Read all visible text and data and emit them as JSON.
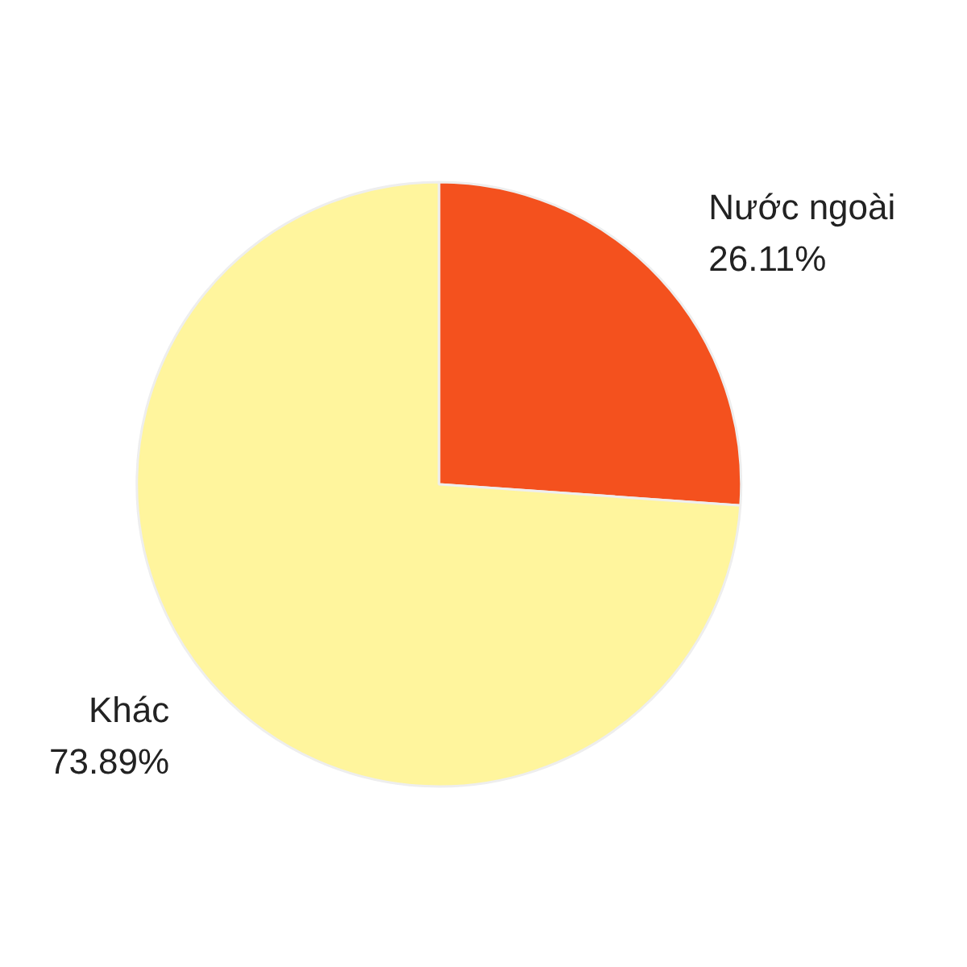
{
  "chart_data": {
    "type": "pie",
    "categories": [
      "Nước ngoài",
      "Khác"
    ],
    "values": [
      26.11,
      73.89
    ],
    "colors": [
      "#f4511e",
      "#fff59d"
    ],
    "value_labels": [
      "26.11%",
      "73.89%"
    ]
  }
}
